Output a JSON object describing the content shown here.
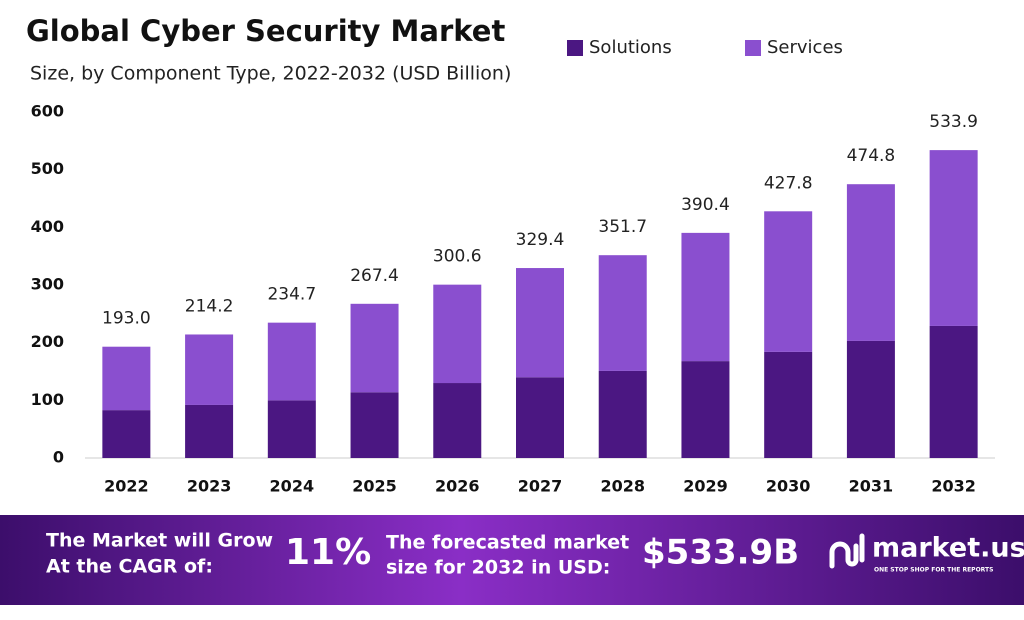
{
  "chart_data": {
    "type": "stacked_bar",
    "title": "Global Cyber Security Market",
    "subtitle": "Size, by Component Type, 2022-2032 (USD Billion)",
    "categories": [
      "2022",
      "2023",
      "2024",
      "2025",
      "2026",
      "2027",
      "2028",
      "2029",
      "2030",
      "2031",
      "2032"
    ],
    "series": [
      {
        "name": "Solutions",
        "color": "#4b1782",
        "values": [
          83,
          92,
          100,
          114,
          130,
          140,
          151,
          168,
          184,
          203,
          229
        ]
      },
      {
        "name": "Services",
        "color": "#8a4fcf",
        "values": [
          110,
          122.2,
          134.7,
          153.4,
          170.6,
          189.4,
          200.7,
          222.4,
          243.8,
          271.8,
          304.9
        ]
      }
    ],
    "totals": [
      193,
      214.2,
      234.7,
      267.4,
      300.6,
      329.4,
      351.7,
      390.4,
      427.8,
      474.8,
      533.9
    ],
    "total_labels": [
      "193.0",
      "214.2",
      "234.7",
      "267.4",
      "300.6",
      "329.4",
      "351.7",
      "390.4",
      "427.8",
      "474.8",
      "533.9"
    ],
    "ylim": [
      0,
      600
    ],
    "yticks": [
      0,
      100,
      200,
      300,
      400,
      500,
      600
    ],
    "grid": false,
    "legend": "top-right"
  },
  "footer": {
    "cagr_text": [
      "The Market will Grow",
      "At the CAGR of:"
    ],
    "cagr_value": "11%",
    "forecast_text": [
      "The forecasted market",
      "size for 2032 in USD:"
    ],
    "forecast_value": "$533.9B",
    "brand": "market.us",
    "tagline": "ONE STOP SHOP FOR THE REPORTS"
  }
}
